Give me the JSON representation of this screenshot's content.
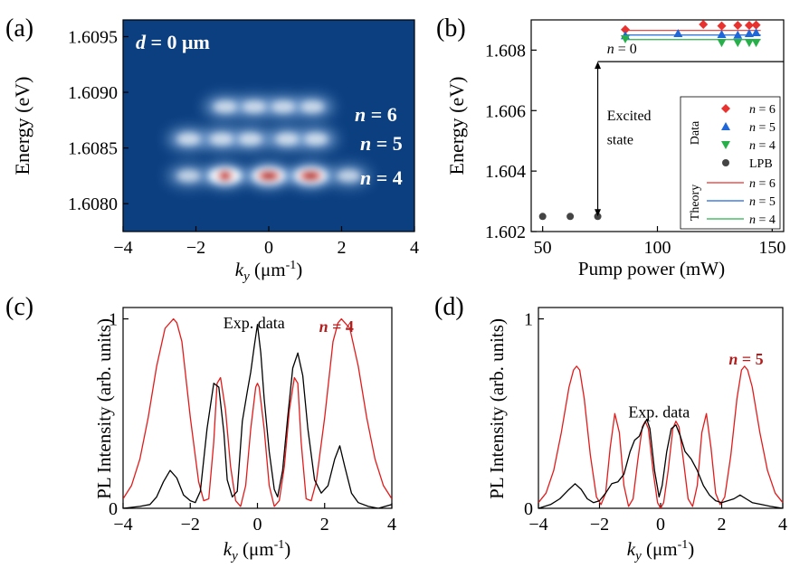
{
  "chart_data": [
    {
      "panel": "(a)",
      "type": "heatmap",
      "annotation": "d = 0 μm",
      "xlabel": "ky (μm-1)",
      "ylabel": "Energy (eV)",
      "xlim": [
        -4,
        4
      ],
      "ylim": [
        1.60775,
        1.60965
      ],
      "xticks": [
        -4,
        -2,
        0,
        2,
        4
      ],
      "yticks": [
        1.608,
        1.6085,
        1.609,
        1.6095
      ],
      "ytick_labels": [
        "1.6080",
        "1.6085",
        "1.6090",
        "1.6095"
      ],
      "colormap": [
        "#0a3a7a",
        "#1b5fa8",
        "#4c8fd0",
        "#b7d3ef",
        "#ffffff",
        "#ff8a5a",
        "#c81e1e",
        "#7a0000"
      ],
      "levels": [
        {
          "label": "n = 6",
          "energy": 1.60887,
          "peaks_ky": [
            -1.2,
            -0.4,
            0.4,
            1.2
          ],
          "intensity": 0.4
        },
        {
          "label": "n = 5",
          "energy": 1.60858,
          "peaks_ky": [
            -2.2,
            -1.3,
            -0.5,
            0.5,
            1.3
          ],
          "intensity": 0.45
        },
        {
          "label": "n = 4",
          "energy": 1.60825,
          "peaks_ky": [
            -2.2,
            -1.2,
            0.0,
            1.15,
            2.2
          ],
          "intensity": [
            0.3,
            0.85,
            1.0,
            1.0,
            0.3
          ]
        }
      ]
    },
    {
      "panel": "(b)",
      "type": "scatter",
      "xlabel": "Pump power (mW)",
      "ylabel": "Energy (eV)",
      "xlim": [
        45,
        155
      ],
      "ylim": [
        1.602,
        1.609
      ],
      "xticks": [
        50,
        100,
        150
      ],
      "yticks": [
        1.602,
        1.604,
        1.606,
        1.608
      ],
      "ytick_labels": [
        "1.602",
        "1.604",
        "1.606",
        "1.608"
      ],
      "legend": {
        "data_title": "Data",
        "theory_title": "Theory",
        "position": "bottom-right"
      },
      "series": [
        {
          "name": "n = 6",
          "kind": "data",
          "marker": "diamond",
          "color": "#e8322f",
          "x": [
            86,
            120,
            128,
            135,
            140,
            143
          ],
          "y": [
            1.60868,
            1.60885,
            1.6088,
            1.60882,
            1.60882,
            1.60883
          ]
        },
        {
          "name": "n = 5",
          "kind": "data",
          "marker": "triangle-up",
          "color": "#1f67d8",
          "x": [
            86,
            109,
            128,
            135,
            140,
            143
          ],
          "y": [
            1.60848,
            1.60855,
            1.60852,
            1.6085,
            1.60855,
            1.60858
          ]
        },
        {
          "name": "n = 4",
          "kind": "data",
          "marker": "triangle-down",
          "color": "#27b04a",
          "x": [
            86,
            128,
            135,
            140,
            143
          ],
          "y": [
            1.60837,
            1.60825,
            1.60825,
            1.60825,
            1.60825
          ]
        },
        {
          "name": "LPB",
          "kind": "data",
          "marker": "circle",
          "color": "#444444",
          "x": [
            50,
            62,
            74
          ],
          "y": [
            1.6025,
            1.6025,
            1.6025
          ]
        },
        {
          "name": "n = 6",
          "kind": "theory",
          "color": "#e8322f",
          "x": [
            86,
            145
          ],
          "y": [
            1.60865,
            1.60865
          ]
        },
        {
          "name": "n = 5",
          "kind": "theory",
          "color": "#1f67d8",
          "x": [
            86,
            145
          ],
          "y": [
            1.6085,
            1.6085
          ]
        },
        {
          "name": "n = 4",
          "kind": "theory",
          "color": "#27b04a",
          "x": [
            86,
            145
          ],
          "y": [
            1.60835,
            1.60835
          ]
        },
        {
          "name": "n = 0",
          "kind": "theory",
          "color": "#000000",
          "x": [
            74,
            155
          ],
          "y": [
            1.60762,
            1.60762
          ]
        }
      ],
      "annotations": [
        {
          "text": "n = 0",
          "x": 78,
          "y": 1.6079
        },
        {
          "text": "Excited",
          "x": 78,
          "y": 1.60568
        },
        {
          "text": "state",
          "x": 78,
          "y": 1.60488
        }
      ]
    },
    {
      "panel": "(c)",
      "type": "line",
      "xlabel": "ky (μm-1)",
      "ylabel": "PL Intensity (arb. units)",
      "xlim": [
        -4,
        4
      ],
      "ylim": [
        0,
        1.06
      ],
      "xticks": [
        -4,
        -2,
        0,
        2,
        4
      ],
      "yticks": [
        0,
        1
      ],
      "annotations": [
        {
          "text": "Exp. data",
          "x": -0.1,
          "y": 0.95
        },
        {
          "text": "n = 4",
          "x": 2.35,
          "y": 0.93,
          "color": "#b51d1d"
        }
      ],
      "series": [
        {
          "name": "Exp. data",
          "color": "#000000",
          "x": [
            -4,
            -3.5,
            -3.2,
            -3.0,
            -2.8,
            -2.6,
            -2.4,
            -2.2,
            -2.0,
            -1.85,
            -1.7,
            -1.5,
            -1.3,
            -1.15,
            -1.0,
            -0.9,
            -0.75,
            -0.6,
            -0.45,
            -0.3,
            -0.2,
            -0.1,
            0.0,
            0.1,
            0.2,
            0.35,
            0.5,
            0.6,
            0.75,
            0.9,
            1.05,
            1.2,
            1.35,
            1.5,
            1.7,
            1.9,
            2.1,
            2.3,
            2.45,
            2.6,
            2.8,
            3.0,
            3.3,
            3.6,
            4.0
          ],
          "y": [
            0.0,
            0.01,
            0.02,
            0.06,
            0.14,
            0.2,
            0.16,
            0.07,
            0.04,
            0.03,
            0.09,
            0.42,
            0.66,
            0.64,
            0.4,
            0.15,
            0.06,
            0.09,
            0.46,
            0.62,
            0.72,
            0.85,
            0.97,
            0.82,
            0.58,
            0.3,
            0.1,
            0.06,
            0.2,
            0.48,
            0.74,
            0.82,
            0.7,
            0.42,
            0.15,
            0.08,
            0.12,
            0.26,
            0.33,
            0.22,
            0.08,
            0.03,
            0.01,
            0.0,
            0.02
          ]
        },
        {
          "name": "n = 4",
          "color": "#e21b1b",
          "x": [
            -4,
            -3.75,
            -3.5,
            -3.25,
            -3.0,
            -2.75,
            -2.5,
            -2.4,
            -2.25,
            -2.0,
            -1.75,
            -1.6,
            -1.45,
            -1.3,
            -1.2,
            -1.1,
            -0.95,
            -0.8,
            -0.65,
            -0.5,
            -0.35,
            -0.2,
            -0.05,
            0.0,
            0.05,
            0.2,
            0.35,
            0.5,
            0.65,
            0.8,
            0.95,
            1.1,
            1.2,
            1.3,
            1.45,
            1.6,
            1.75,
            2.0,
            2.25,
            2.4,
            2.5,
            2.75,
            3.0,
            3.25,
            3.5,
            3.75,
            4.0
          ],
          "y": [
            0.05,
            0.12,
            0.26,
            0.48,
            0.75,
            0.95,
            1.0,
            0.98,
            0.88,
            0.48,
            0.14,
            0.04,
            0.05,
            0.35,
            0.66,
            0.69,
            0.52,
            0.22,
            0.04,
            0.01,
            0.12,
            0.42,
            0.64,
            0.66,
            0.64,
            0.42,
            0.12,
            0.01,
            0.04,
            0.22,
            0.52,
            0.69,
            0.66,
            0.35,
            0.05,
            0.04,
            0.14,
            0.48,
            0.88,
            0.98,
            1.0,
            0.95,
            0.75,
            0.48,
            0.26,
            0.12,
            0.05
          ]
        }
      ]
    },
    {
      "panel": "(d)",
      "type": "line",
      "xlabel": "ky (μm-1)",
      "ylabel": "PL Intensity (arb. units)",
      "xlim": [
        -4,
        4
      ],
      "ylim": [
        0,
        1.06
      ],
      "xticks": [
        -4,
        -2,
        0,
        2,
        4
      ],
      "yticks": [
        0,
        1
      ],
      "annotations": [
        {
          "text": "Exp. data",
          "x": -0.05,
          "y": 0.48
        },
        {
          "text": "n = 5",
          "x": 2.8,
          "y": 0.76,
          "color": "#b51d1d"
        }
      ],
      "series": [
        {
          "name": "Exp. data",
          "color": "#000000",
          "x": [
            -4,
            -3.6,
            -3.3,
            -3.0,
            -2.8,
            -2.6,
            -2.4,
            -2.2,
            -2.0,
            -1.8,
            -1.6,
            -1.4,
            -1.2,
            -1.0,
            -0.85,
            -0.7,
            -0.55,
            -0.45,
            -0.35,
            -0.2,
            -0.05,
            0.05,
            0.2,
            0.35,
            0.5,
            0.65,
            0.8,
            1.0,
            1.2,
            1.4,
            1.6,
            1.8,
            2.0,
            2.2,
            2.4,
            2.6,
            2.8,
            3.0,
            3.3,
            3.6,
            4.0
          ],
          "y": [
            0.0,
            0.02,
            0.05,
            0.1,
            0.13,
            0.1,
            0.05,
            0.03,
            0.04,
            0.08,
            0.13,
            0.14,
            0.18,
            0.3,
            0.36,
            0.38,
            0.44,
            0.47,
            0.42,
            0.2,
            0.06,
            0.12,
            0.3,
            0.42,
            0.44,
            0.38,
            0.3,
            0.26,
            0.2,
            0.12,
            0.07,
            0.04,
            0.03,
            0.04,
            0.05,
            0.07,
            0.05,
            0.03,
            0.02,
            0.01,
            0.0
          ]
        },
        {
          "name": "n = 5",
          "color": "#e21b1b",
          "x": [
            -4,
            -3.75,
            -3.5,
            -3.25,
            -3.0,
            -2.85,
            -2.75,
            -2.65,
            -2.5,
            -2.3,
            -2.1,
            -1.95,
            -1.8,
            -1.65,
            -1.5,
            -1.35,
            -1.2,
            -1.05,
            -0.9,
            -0.75,
            -0.6,
            -0.5,
            -0.4,
            -0.25,
            -0.1,
            0.0,
            0.1,
            0.25,
            0.4,
            0.5,
            0.6,
            0.75,
            0.9,
            1.05,
            1.2,
            1.35,
            1.5,
            1.65,
            1.8,
            1.95,
            2.1,
            2.3,
            2.5,
            2.65,
            2.75,
            2.85,
            3.0,
            3.25,
            3.5,
            3.75,
            4.0
          ],
          "y": [
            0.03,
            0.08,
            0.2,
            0.4,
            0.64,
            0.73,
            0.75,
            0.73,
            0.58,
            0.28,
            0.06,
            0.02,
            0.08,
            0.32,
            0.5,
            0.4,
            0.12,
            0.01,
            0.05,
            0.25,
            0.43,
            0.46,
            0.42,
            0.2,
            0.03,
            0.0,
            0.03,
            0.2,
            0.42,
            0.46,
            0.43,
            0.25,
            0.05,
            0.01,
            0.12,
            0.4,
            0.5,
            0.32,
            0.08,
            0.02,
            0.06,
            0.28,
            0.58,
            0.73,
            0.75,
            0.73,
            0.64,
            0.4,
            0.2,
            0.08,
            0.03
          ]
        }
      ]
    }
  ],
  "labels": {
    "panel_a": "(a)",
    "panel_b": "(b)",
    "panel_c": "(c)",
    "panel_d": "(d)",
    "a_annot_d": "d",
    "a_annot_rest": " = 0 μm",
    "n_italic": "n",
    "n6_rest": " = 6",
    "n5_rest": " = 5",
    "n4_rest": " = 4",
    "n0_rest": " = 0",
    "energy_ev": "Energy (eV)",
    "ky_k": "k",
    "ky_sub": "y",
    "ky_unit": " (μm",
    "ky_exp": "-1",
    "ky_close": ")",
    "pump_power": "Pump power (mW)",
    "excited": "Excited",
    "state": "state",
    "legend_data": "Data",
    "legend_theory": "Theory",
    "legend_lpb": "LPB",
    "pl_intensity": "PL Intensity (arb. units)",
    "exp_data": "Exp. data"
  }
}
